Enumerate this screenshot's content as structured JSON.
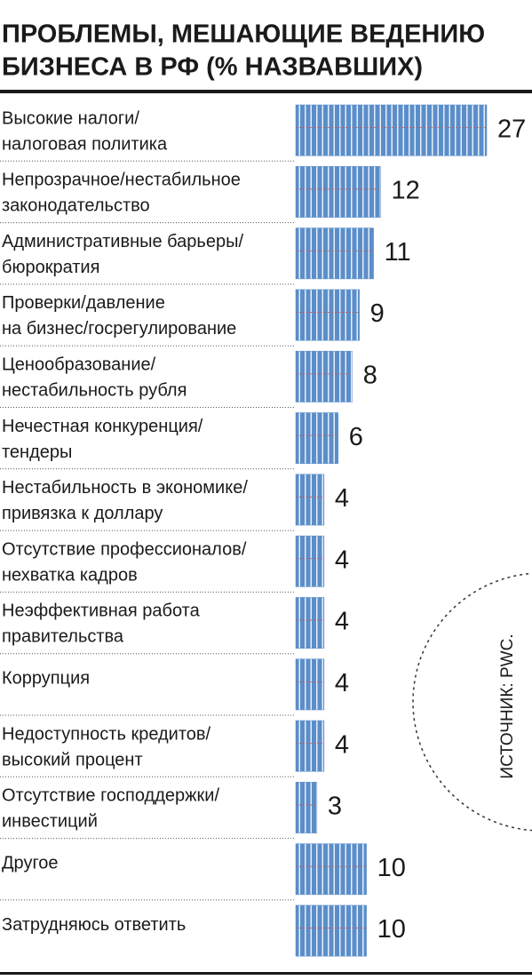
{
  "chart_data": {
    "type": "bar",
    "orientation": "horizontal",
    "title": [
      "ПРОБЛЕМЫ, МЕШАЮЩИЕ ВЕДЕНИЮ",
      "БИЗНЕСА В РФ (% НАЗВАВШИХ)"
    ],
    "categories": [
      [
        "Высокие налоги/",
        "налоговая политика"
      ],
      [
        "Непрозрачное/нестабильное",
        "законодательство"
      ],
      [
        "Административные барьеры/",
        "бюрократия"
      ],
      [
        "Проверки/давление",
        "на бизнес/госрегулирование"
      ],
      [
        "Ценообразование/",
        "нестабильность рубля"
      ],
      [
        "Нечестная конкуренция/",
        "тендеры"
      ],
      [
        "Нестабильность в экономике/",
        "привязка к доллару"
      ],
      [
        "Отсутствие профессионалов/",
        "нехватка кадров"
      ],
      [
        "Неэффективная работа",
        "правительства"
      ],
      [
        "Коррупция"
      ],
      [
        "Недоступность кредитов/",
        "высокий процент"
      ],
      [
        "Отсутствие господдержки/",
        "инвестиций"
      ],
      [
        "Другое"
      ],
      [
        "Затрудняюсь ответить"
      ]
    ],
    "values": [
      27,
      12,
      11,
      9,
      8,
      6,
      4,
      4,
      4,
      4,
      4,
      3,
      10,
      10
    ],
    "color": "#5b8ec9",
    "source": "ИСТОЧНИК: PWC."
  }
}
